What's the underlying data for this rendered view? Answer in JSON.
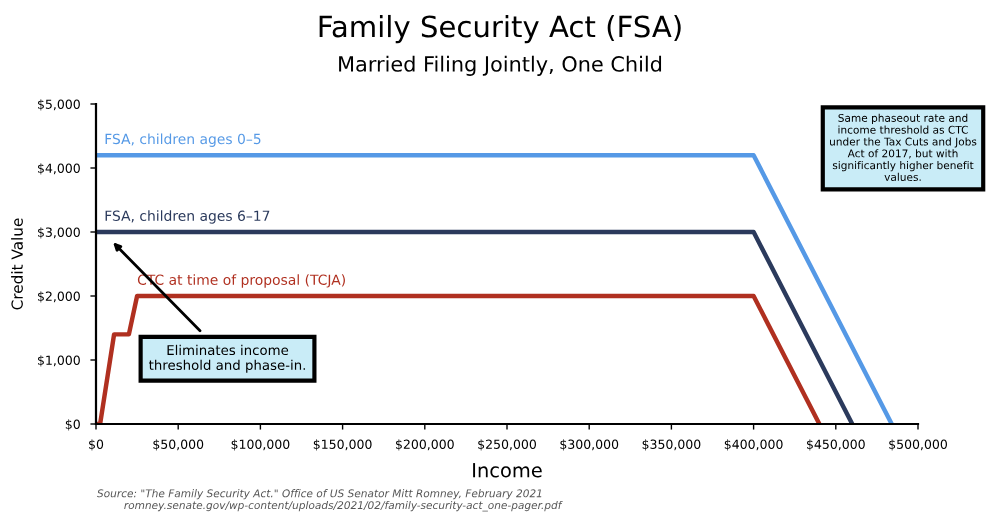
{
  "chart_data": {
    "type": "line",
    "title": "Family Security Act (FSA)",
    "subtitle": "Married Filing Jointly, One Child",
    "xlabel": "Income",
    "ylabel": "Credit Value",
    "series": [
      {
        "name": "FSA, children ages 0–5",
        "color": "#5599e6",
        "x": [
          0,
          400000,
          484000
        ],
        "values": [
          4200,
          4200,
          0
        ]
      },
      {
        "name": "FSA, children ages 6–17",
        "color": "#2b3a5c",
        "x": [
          0,
          400000,
          460000
        ],
        "values": [
          3000,
          3000,
          0
        ]
      },
      {
        "name": "CTC at time of proposal (TCJA)",
        "color": "#b03020",
        "x": [
          0,
          2500,
          11000,
          20000,
          25000,
          400000,
          440000
        ],
        "values": [
          0,
          0,
          1400,
          1400,
          2000,
          2000,
          0
        ]
      }
    ],
    "xlim": [
      0,
      500000
    ],
    "xticks": [
      {
        "value": 0,
        "label": "$0"
      },
      {
        "value": 50000,
        "label": "$50,000"
      },
      {
        "value": 100000,
        "label": "$100,000"
      },
      {
        "value": 150000,
        "label": "$150,000"
      },
      {
        "value": 200000,
        "label": "$200,000"
      },
      {
        "value": 250000,
        "label": "$250,000"
      },
      {
        "value": 300000,
        "label": "$300,000"
      },
      {
        "value": 350000,
        "label": "$350,000"
      },
      {
        "value": 400000,
        "label": "$400,000"
      },
      {
        "value": 450000,
        "label": "$450,000"
      },
      {
        "value": 500000,
        "label": "$500,000"
      }
    ],
    "ylim": [
      0,
      5000
    ],
    "yticks": [
      {
        "value": 0,
        "label": "$0"
      },
      {
        "value": 1000,
        "label": "$1,000"
      },
      {
        "value": 2000,
        "label": "$2,000"
      },
      {
        "value": 3000,
        "label": "$3,000"
      },
      {
        "value": 4000,
        "label": "$4,000"
      },
      {
        "value": 5000,
        "label": "$5,000"
      }
    ],
    "grid": false,
    "legend": false,
    "marker": "none",
    "line_style": "solid",
    "annotations": [
      {
        "text": "Eliminates income\nthreshold and phase-in.",
        "x": 8000,
        "y": 2900
      },
      "Same phaseout rate and\nincome threshold as CTC\nunder the Tax Cuts and Jobs\nAct of 2017, but with\nsignificantly higher benefit\nvalues.",
      "Source: \"The Family Security Act.\" Office of US Senator Mitt Romney, February 2021\n        romney.senate.gov/wp-content/uploads/2021/02/family-security-act_one-pager.pdf"
    ]
  }
}
